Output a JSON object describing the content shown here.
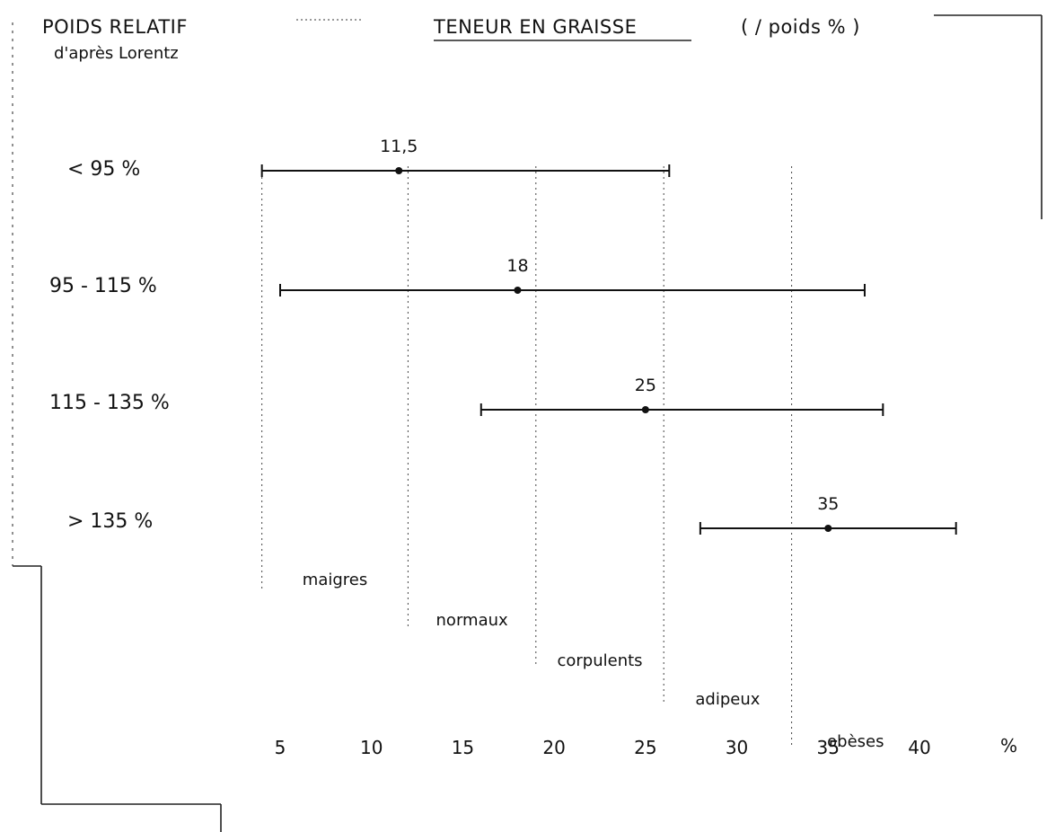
{
  "header": {
    "left_title": "POIDS RELATIF",
    "left_subtitle": "d'après Lorentz",
    "right_title": "TENEUR EN GRAISSE",
    "right_unit": "( / poids % )"
  },
  "chart_data": {
    "type": "range",
    "title": "TENEUR EN GRAISSE",
    "ylabel": "POIDS RELATIF d'après Lorentz",
    "xlabel_unit": "%",
    "x_ticks": [
      5,
      10,
      15,
      20,
      25,
      30,
      35,
      40
    ],
    "xlim": [
      4,
      42
    ],
    "rows": [
      {
        "label": "< 95 %",
        "min": 4,
        "mean": 11.5,
        "max": 26.3,
        "value_label": "11,5"
      },
      {
        "label": "95 - 115 %",
        "min": 5,
        "mean": 18,
        "max": 37,
        "value_label": "18"
      },
      {
        "label": "115 - 135 %",
        "min": 16,
        "mean": 25,
        "max": 38,
        "value_label": "25"
      },
      {
        "label": "> 135 %",
        "min": 28,
        "mean": 35,
        "max": 42,
        "value_label": "35"
      }
    ],
    "boundaries": [
      4,
      12,
      19,
      26,
      33
    ],
    "categories": [
      "maigres",
      "normaux",
      "corpulents",
      "adipeux",
      "obèses"
    ]
  }
}
